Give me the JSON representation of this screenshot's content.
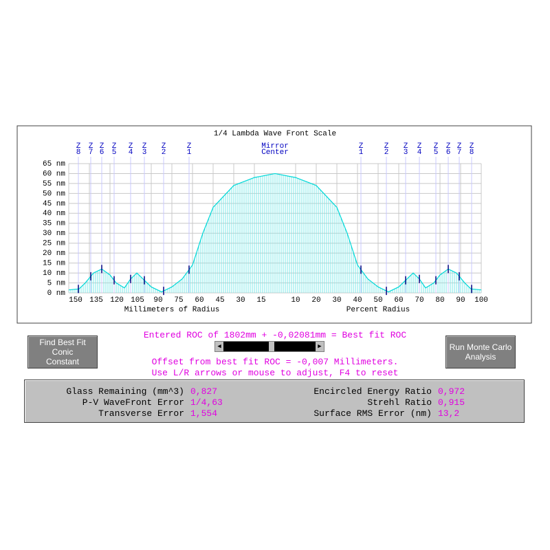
{
  "chart_data": {
    "type": "area",
    "title": "1/4 Lambda Wave Front Scale",
    "x_label_left": "Millimeters of Radius",
    "x_label_right": "Percent Radius",
    "center_label": [
      "Mirror",
      "Center"
    ],
    "x": [
      -150,
      -142.5,
      -138,
      -132,
      -126,
      -120,
      -115.5,
      -109.5,
      -105,
      -100.5,
      -97.5,
      -90,
      -82.5,
      -75,
      -67.5,
      -60,
      -52.5,
      -45,
      -30,
      -15,
      0,
      15,
      30,
      45,
      52.5,
      60,
      67.5,
      75,
      82.5,
      90,
      97.5,
      100.5,
      105,
      109.5,
      115.5,
      120,
      126,
      132,
      138,
      142.5,
      150
    ],
    "values": [
      1.5,
      2,
      5,
      10,
      12,
      9,
      5,
      2.5,
      7,
      10,
      8,
      3,
      0.5,
      3,
      7,
      14,
      30,
      43,
      54,
      58,
      60,
      58,
      54,
      43,
      30,
      14,
      7,
      3,
      0.5,
      3,
      8,
      10,
      7,
      2.5,
      5,
      9,
      12,
      10,
      5,
      2,
      1.5
    ],
    "color": "#00d8d8",
    "xlim": [
      -150,
      150
    ],
    "xticks": [
      {
        "value": -150,
        "label": "150"
      },
      {
        "value": -135,
        "label": "135"
      },
      {
        "value": -120,
        "label": "120"
      },
      {
        "value": -105,
        "label": "105"
      },
      {
        "value": -90,
        "label": "90"
      },
      {
        "value": -75,
        "label": "75"
      },
      {
        "value": -60,
        "label": "60"
      },
      {
        "value": -45,
        "label": "45"
      },
      {
        "value": -30,
        "label": "30"
      },
      {
        "value": -15,
        "label": "15"
      }
    ],
    "x2lim": [
      -100,
      100
    ],
    "x2ticks": [
      10,
      20,
      30,
      40,
      50,
      60,
      70,
      80,
      90,
      100
    ],
    "ylim": [
      0,
      65
    ],
    "yticks": [
      {
        "value": 0,
        "label": "0 nm"
      },
      {
        "value": 5,
        "label": "5 nm"
      },
      {
        "value": 10,
        "label": "10 nm"
      },
      {
        "value": 15,
        "label": "15 nm"
      },
      {
        "value": 20,
        "label": "20 nm"
      },
      {
        "value": 25,
        "label": "25 nm"
      },
      {
        "value": 30,
        "label": "30 nm"
      },
      {
        "value": 35,
        "label": "35 nm"
      },
      {
        "value": 40,
        "label": "40 nm"
      },
      {
        "value": 45,
        "label": "45 nm"
      },
      {
        "value": 50,
        "label": "50 nm"
      },
      {
        "value": 55,
        "label": "55 nm"
      },
      {
        "value": 60,
        "label": "60 nm"
      },
      {
        "value": 65,
        "label": "65 nm"
      }
    ],
    "grid": true,
    "zones": [
      {
        "name": "Z",
        "number": "8",
        "position": -143
      },
      {
        "name": "Z",
        "number": "7",
        "position": -134
      },
      {
        "name": "Z",
        "number": "6",
        "position": -126
      },
      {
        "name": "Z",
        "number": "5",
        "position": -117
      },
      {
        "name": "Z",
        "number": "4",
        "position": -105
      },
      {
        "name": "Z",
        "number": "3",
        "position": -95
      },
      {
        "name": "Z",
        "number": "2",
        "position": -81
      },
      {
        "name": "Z",
        "number": "1",
        "position": -62.5
      },
      {
        "name": "Z",
        "number": "1",
        "position": 62.5
      },
      {
        "name": "Z",
        "number": "2",
        "position": 81
      },
      {
        "name": "Z",
        "number": "3",
        "position": 95
      },
      {
        "name": "Z",
        "number": "4",
        "position": 105
      },
      {
        "name": "Z",
        "number": "5",
        "position": 117
      },
      {
        "name": "Z",
        "number": "6",
        "position": 126
      },
      {
        "name": "Z",
        "number": "7",
        "position": 134
      },
      {
        "name": "Z",
        "number": "8",
        "position": 143
      }
    ]
  },
  "roc": {
    "entered": "Entered ROC of 1802mm + -0,02081mm = Best fit ROC",
    "offset": "Offset from best fit ROC = -0,007 Millimeters.",
    "hint": "Use L/R arrows or mouse to adjust, F4 to reset"
  },
  "buttons": [
    [
      "Find Best Fit Conic",
      "Constant"
    ],
    [
      "Run Monte Carlo",
      "Analysis"
    ]
  ],
  "stats": {
    "left": [
      {
        "label": "Glass Remaining (mm^3)",
        "value": "0,827"
      },
      {
        "label": "P-V WaveFront Error",
        "value": "1/4,63"
      },
      {
        "label": "Transverse Error",
        "value": "1,554"
      }
    ],
    "right": [
      {
        "label": "Encircled Energy Ratio",
        "value": "0,972"
      },
      {
        "label": "Strehl Ratio",
        "value": "0,915"
      },
      {
        "label": "Surface RMS Error (nm)",
        "value": "13,2"
      }
    ]
  }
}
